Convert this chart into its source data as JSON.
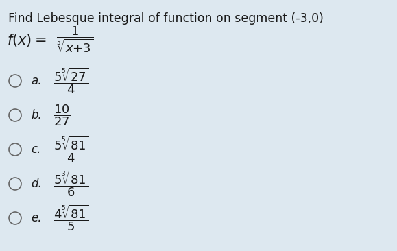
{
  "title": "Find Lebesque integral of function on segment (-3,0)",
  "background_color": "#dde8f0",
  "title_fontsize": 12.5,
  "text_color": "#1a1a1a",
  "options": [
    {
      "label": "a.",
      "expr": "$\\dfrac{5\\sqrt[5]{27}}{4}$"
    },
    {
      "label": "b.",
      "expr": "$\\dfrac{10}{27}$"
    },
    {
      "label": "c.",
      "expr": "$\\dfrac{5\\sqrt[5]{81}}{4}$"
    },
    {
      "label": "d.",
      "expr": "$\\dfrac{5\\sqrt[3]{81}}{6}$"
    },
    {
      "label": "e.",
      "expr": "$\\dfrac{4\\sqrt[5]{81}}{5}$"
    }
  ]
}
